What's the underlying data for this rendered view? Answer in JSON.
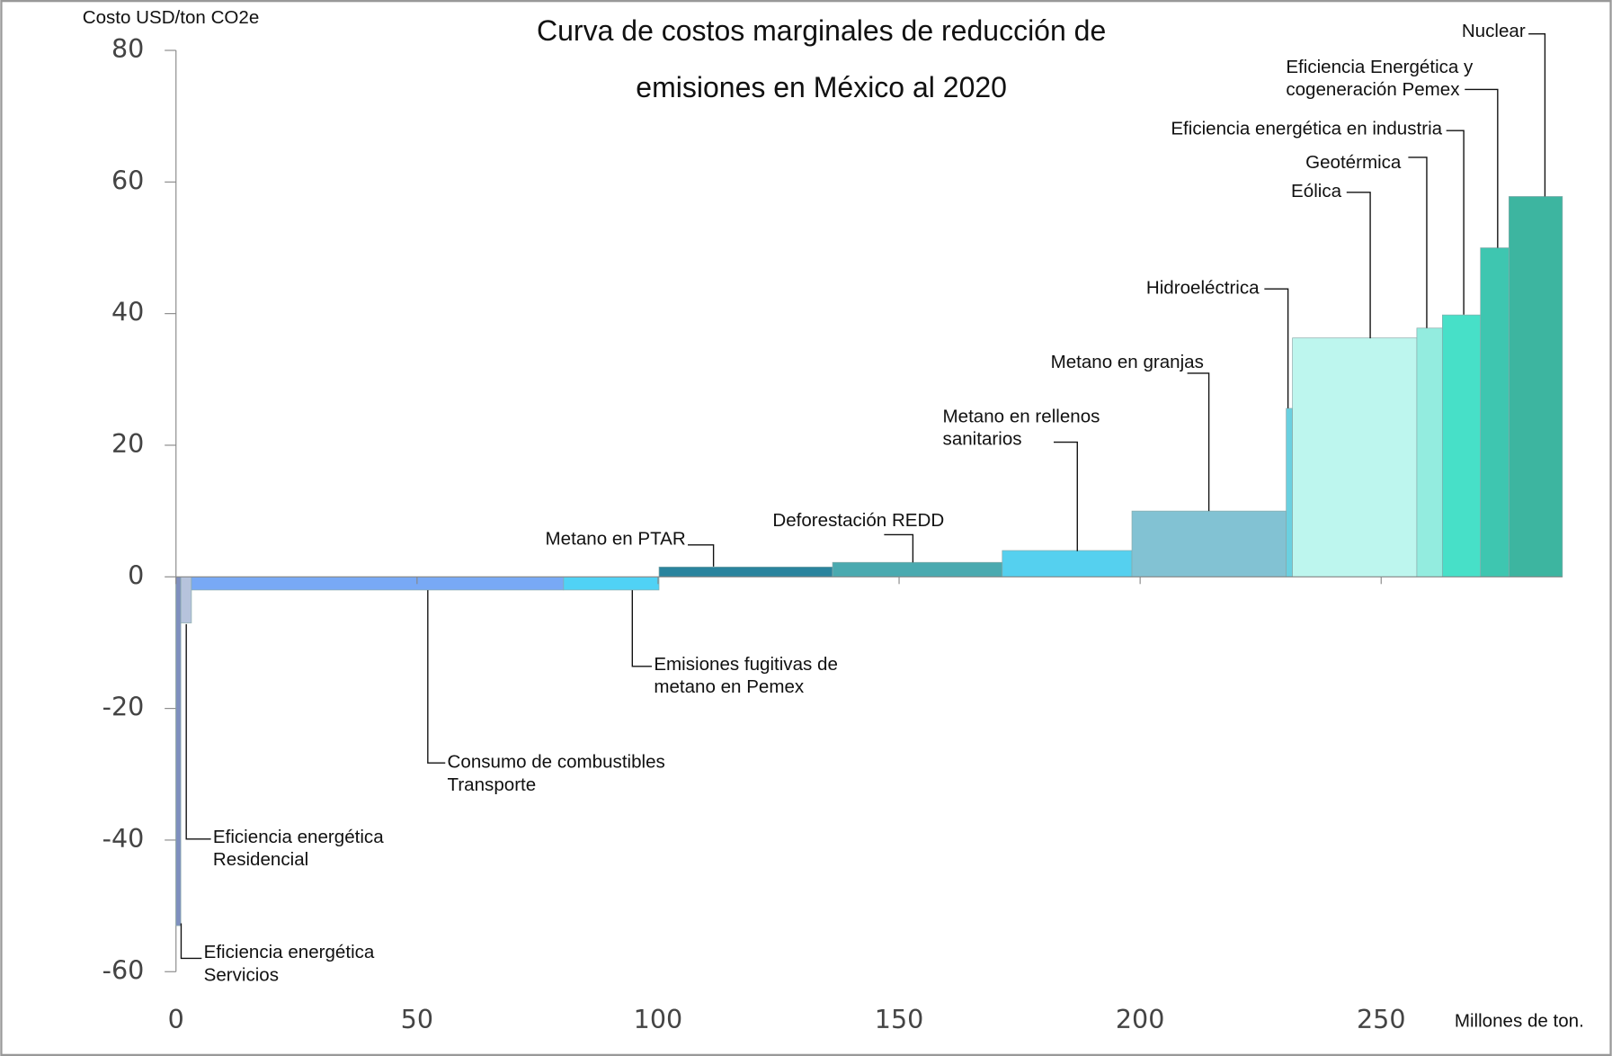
{
  "chart_data": {
    "type": "mac",
    "title": [
      "Curva de costos marginales de reducción de",
      "emisiones en México al 2020"
    ],
    "y_label": "Costo USD/ton CO2e",
    "x_label": "Millones de ton.",
    "xlim": [
      0,
      287.6
    ],
    "ylim": [
      -60,
      80
    ],
    "xticks": [
      0,
      50,
      100,
      150,
      200,
      250
    ],
    "yticks": [
      -60,
      -40,
      -20,
      0,
      20,
      40,
      60,
      80
    ],
    "bars": [
      {
        "label": [
          "Eficiencia energética",
          "Servicios"
        ],
        "x0": 0,
        "x1": 1.0,
        "value": -53,
        "color": "#7f8fbf"
      },
      {
        "label": [
          "Eficiencia energética",
          "Residencial"
        ],
        "x0": 1.0,
        "x1": 3.2,
        "value": -7,
        "color": "#b6c3dc"
      },
      {
        "label": [
          "Consumo de combustibles",
          "Transporte"
        ],
        "x0": 3.2,
        "x1": 80.4,
        "value": -2,
        "color": "#78a9f5"
      },
      {
        "label": [
          "Emisiones fugitivas de",
          "metano en Pemex"
        ],
        "x0": 80.4,
        "x1": 100.2,
        "value": -2,
        "color": "#50d2f5"
      },
      {
        "label": [
          "Metano en PTAR"
        ],
        "x0": 100.2,
        "x1": 136.2,
        "value": 1.5,
        "color": "#2a849e"
      },
      {
        "label": [
          "Deforestación REDD"
        ],
        "x0": 136.2,
        "x1": 171.4,
        "value": 2.2,
        "color": "#4aaab0"
      },
      {
        "label": [
          "Metano en rellenos",
          "sanitarios"
        ],
        "x0": 171.4,
        "x1": 198.3,
        "value": 4,
        "color": "#55d0ef"
      },
      {
        "label": [
          "Metano en granjas"
        ],
        "x0": 198.3,
        "x1": 230.3,
        "value": 10,
        "color": "#82c2d3"
      },
      {
        "label": [
          "Hidroeléctrica"
        ],
        "x0": 230.3,
        "x1": 231.6,
        "value": 25.6,
        "color": "#6bd0e0"
      },
      {
        "label": [
          "Eólica"
        ],
        "x0": 231.6,
        "x1": 257.4,
        "value": 36.3,
        "color": "#bdf6ee"
      },
      {
        "label": [
          "Geotérmica"
        ],
        "x0": 257.4,
        "x1": 262.7,
        "value": 37.8,
        "color": "#93ecdf"
      },
      {
        "label": [
          "Eficiencia energética en industria"
        ],
        "x0": 262.7,
        "x1": 270.6,
        "value": 39.8,
        "color": "#47e0c8"
      },
      {
        "label": [
          "Eficiencia Energética y",
          "cogeneración Pemex"
        ],
        "x0": 270.6,
        "x1": 276.5,
        "value": 50,
        "color": "#3ec6b0"
      },
      {
        "label": [
          "Nuclear"
        ],
        "x0": 276.5,
        "x1": 287.6,
        "value": 57.8,
        "color": "#3db5a0"
      }
    ]
  }
}
